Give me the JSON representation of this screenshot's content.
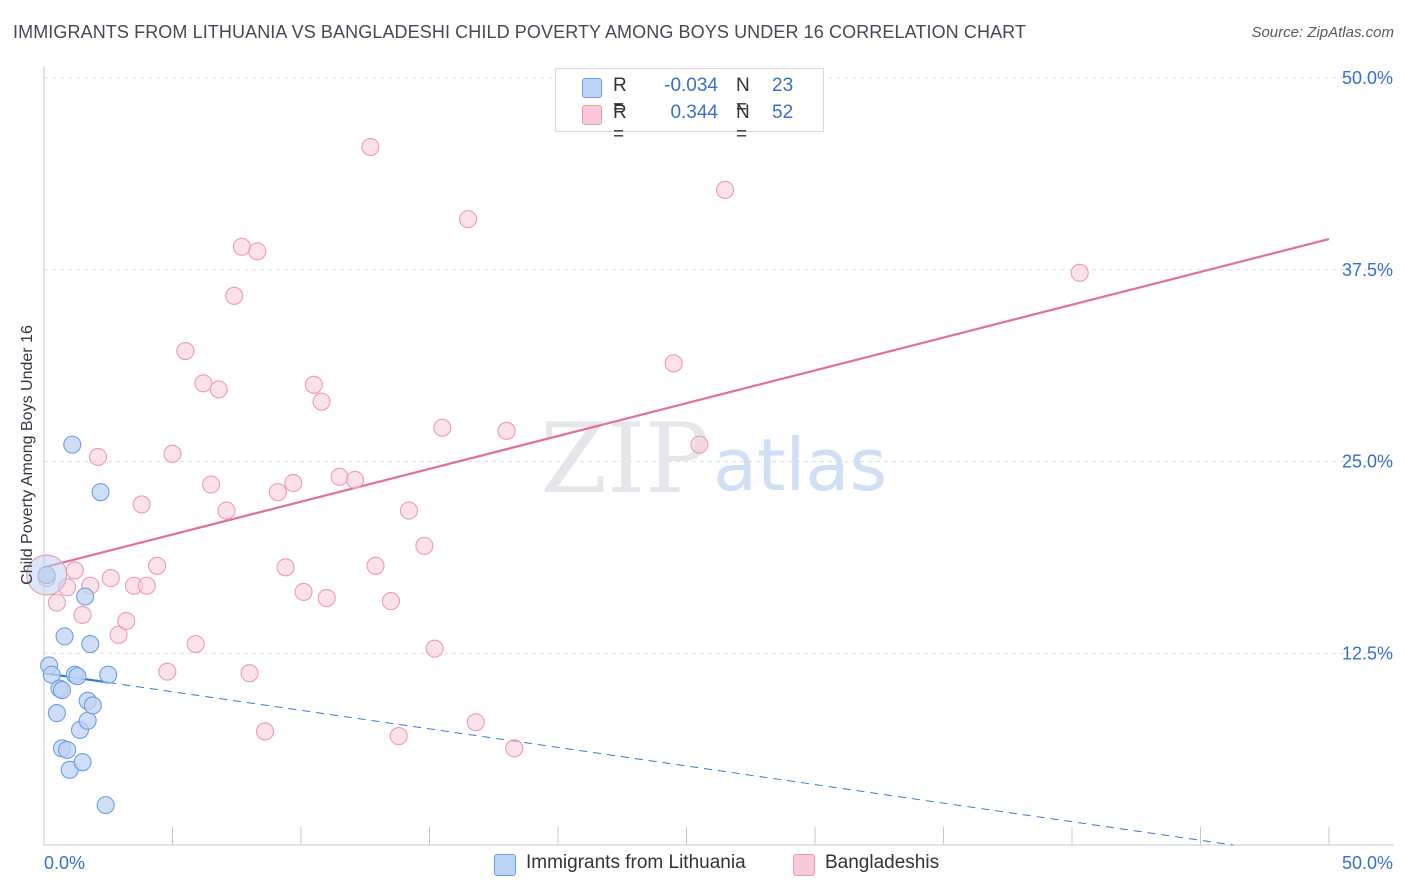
{
  "header": {
    "title": "IMMIGRANTS FROM LITHUANIA VS BANGLADESHI CHILD POVERTY AMONG BOYS UNDER 16 CORRELATION CHART",
    "source": "Source: ZipAtlas.com"
  },
  "watermark": {
    "zip": "ZIP",
    "atlas": "atlas"
  },
  "stats": [
    {
      "r_label": "R =",
      "r_value": "-0.034",
      "n_label": "N =",
      "n_value": "23"
    },
    {
      "r_label": "R =",
      "r_value": "0.344",
      "n_label": "N =",
      "n_value": "52"
    }
  ],
  "colors": {
    "lith_fill": "#bdd3f3",
    "lith_stroke": "#6e9ee0",
    "lith_line": "#3a78d4",
    "bang_fill": "#f8cad8",
    "bang_stroke": "#ec9ab4",
    "bang_line": "#e0709a",
    "tick_label": "#3a6fc4",
    "grid": "#dcdfe4"
  },
  "chart_data": {
    "type": "scatter",
    "title": "IMMIGRANTS FROM LITHUANIA VS BANGLADESHI CHILD POVERTY AMONG BOYS UNDER 16 CORRELATION CHART",
    "xlabel": "",
    "ylabel": "Child Poverty Among Boys Under 16",
    "xlim": [
      0,
      50
    ],
    "ylim": [
      0,
      50
    ],
    "x_tick_labels": [
      "0.0%",
      "50.0%"
    ],
    "y_ticks": [
      12.5,
      25.0,
      37.5,
      50.0
    ],
    "y_tick_labels": [
      "12.5%",
      "25.0%",
      "37.5%",
      "50.0%"
    ],
    "legend": [
      "Immigrants from Lithuania",
      "Bangladeshis"
    ],
    "series": [
      {
        "name": "Immigrants from Lithuania",
        "r": -0.034,
        "n": 23,
        "points": [
          [
            0.1,
            17.6
          ],
          [
            0.2,
            11.7
          ],
          [
            0.3,
            11.1
          ],
          [
            0.5,
            8.6
          ],
          [
            0.6,
            10.2
          ],
          [
            0.7,
            6.3
          ],
          [
            0.7,
            10.1
          ],
          [
            0.8,
            13.6
          ],
          [
            0.9,
            6.2
          ],
          [
            1.0,
            4.9
          ],
          [
            1.1,
            26.1
          ],
          [
            1.2,
            11.1
          ],
          [
            1.3,
            11.0
          ],
          [
            1.4,
            7.5
          ],
          [
            1.5,
            5.4
          ],
          [
            1.6,
            16.2
          ],
          [
            1.7,
            9.4
          ],
          [
            1.7,
            8.1
          ],
          [
            1.8,
            13.1
          ],
          [
            1.9,
            9.1
          ],
          [
            2.2,
            23.0
          ],
          [
            2.4,
            2.6
          ],
          [
            2.5,
            11.1
          ]
        ],
        "trend": {
          "x": [
            0,
            50
          ],
          "y": [
            11.2,
            -0.9
          ],
          "solid_until_x": 2.5
        }
      },
      {
        "name": "Bangladeshis",
        "r": 0.344,
        "n": 52,
        "points": [
          [
            0.1,
            17.4
          ],
          [
            0.5,
            15.8
          ],
          [
            0.9,
            16.8
          ],
          [
            1.2,
            17.9
          ],
          [
            1.5,
            15.0
          ],
          [
            1.8,
            16.9
          ],
          [
            2.1,
            25.3
          ],
          [
            2.6,
            17.4
          ],
          [
            2.9,
            13.7
          ],
          [
            3.2,
            14.6
          ],
          [
            3.5,
            16.9
          ],
          [
            3.8,
            22.2
          ],
          [
            4.0,
            16.9
          ],
          [
            4.4,
            18.2
          ],
          [
            4.8,
            11.3
          ],
          [
            5.0,
            25.5
          ],
          [
            5.5,
            32.2
          ],
          [
            5.9,
            13.1
          ],
          [
            6.2,
            30.1
          ],
          [
            6.5,
            23.5
          ],
          [
            6.8,
            29.7
          ],
          [
            7.1,
            21.8
          ],
          [
            7.4,
            35.8
          ],
          [
            7.7,
            39.0
          ],
          [
            8.0,
            11.2
          ],
          [
            8.3,
            38.7
          ],
          [
            8.6,
            7.4
          ],
          [
            9.1,
            23.0
          ],
          [
            9.4,
            18.1
          ],
          [
            9.7,
            23.6
          ],
          [
            10.1,
            16.5
          ],
          [
            10.5,
            30.0
          ],
          [
            10.8,
            28.9
          ],
          [
            11.0,
            16.1
          ],
          [
            11.5,
            24.0
          ],
          [
            12.1,
            23.8
          ],
          [
            12.7,
            45.5
          ],
          [
            12.9,
            18.2
          ],
          [
            13.5,
            15.9
          ],
          [
            13.8,
            7.1
          ],
          [
            14.2,
            21.8
          ],
          [
            14.8,
            19.5
          ],
          [
            15.2,
            12.8
          ],
          [
            15.5,
            27.2
          ],
          [
            16.5,
            40.8
          ],
          [
            16.8,
            8.0
          ],
          [
            18.0,
            27.0
          ],
          [
            18.3,
            6.3
          ],
          [
            24.5,
            31.4
          ],
          [
            25.5,
            26.1
          ],
          [
            26.5,
            42.7
          ],
          [
            40.3,
            37.3
          ]
        ],
        "trend": {
          "x": [
            0,
            50
          ],
          "y": [
            18.1,
            39.5
          ]
        }
      }
    ]
  }
}
